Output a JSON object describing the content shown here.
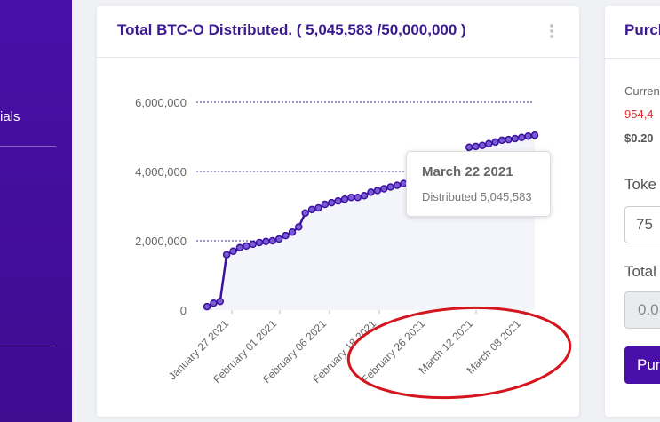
{
  "sidebar": {
    "item_label": "ials"
  },
  "card": {
    "title": "Total BTC-O Distributed. ( 5,045,583 /50,000,000 )",
    "menu_icon": "kebab-menu-icon"
  },
  "tooltip": {
    "title": "March 22 2021",
    "body": "Distributed 5,045,583"
  },
  "right_panel": {
    "title": "Purch",
    "current_label": "Curren",
    "red_value": "954,4",
    "price": "$0.20",
    "token_label": "Toke",
    "token_value": "75",
    "total_label": "Total",
    "total_value": "0.0",
    "button_label": "Pur"
  },
  "chart_data": {
    "type": "line",
    "title": "Total BTC-O Distributed. ( 5,045,583 /50,000,000 )",
    "y_ticks": [
      "0",
      "2,000,000",
      "4,000,000",
      "6,000,000"
    ],
    "ylim": [
      0,
      6000000
    ],
    "x_tick_labels": [
      "January 27 2021",
      "February 01 2021",
      "February 06 2021",
      "February 18 2021",
      "February 26 2021",
      "March 12 2021",
      "March 08 2021"
    ],
    "series": [
      {
        "name": "Distributed",
        "values": [
          100000,
          200000,
          250000,
          1600000,
          1700000,
          1800000,
          1850000,
          1900000,
          1950000,
          1980000,
          2000000,
          2050000,
          2150000,
          2250000,
          2400000,
          2800000,
          2900000,
          2950000,
          3050000,
          3100000,
          3150000,
          3200000,
          3250000,
          3250000,
          3300000,
          3400000,
          3450000,
          3500000,
          3550000,
          3600000,
          3650000,
          3700000,
          3750000,
          3800000,
          3850000,
          3900000,
          3950000,
          4000000,
          4050000,
          4100000,
          4700000,
          4720000,
          4750000,
          4800000,
          4850000,
          4900000,
          4920000,
          4950000,
          4980000,
          5020000,
          5045583
        ]
      }
    ],
    "grid": true,
    "colors": {
      "line": "#3b10a0",
      "area": "#f4f4fb",
      "grid": "#3b2a8f",
      "annotation": "#d4151e"
    }
  }
}
